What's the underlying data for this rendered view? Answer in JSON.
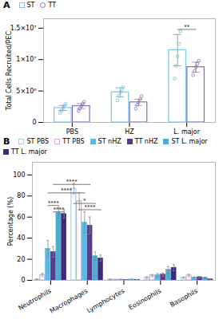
{
  "chart_data": [
    {
      "type": "bar",
      "title": "A",
      "categories": [
        "PBS",
        "HZ",
        "L. major"
      ],
      "series": [
        {
          "name": "ST",
          "color": "#7EC8E3",
          "marker": "square",
          "values": [
            2300000,
            4800000,
            11500000
          ],
          "errors": [
            400000,
            700000,
            2500000
          ],
          "points": [
            [
              1500000,
              1900000,
              2300000,
              2700000,
              3000000
            ],
            [
              3500000,
              4200000,
              4800000,
              5300000,
              5600000
            ],
            [
              7000000,
              9000000,
              10500000,
              12500000,
              14500000
            ]
          ]
        },
        {
          "name": "TT",
          "color": "#8B6BB1",
          "marker": "circle",
          "values": [
            2600000,
            3200000,
            8800000
          ],
          "errors": [
            400000,
            500000,
            800000
          ],
          "points": [
            [
              1800000,
              2200000,
              2600000,
              3000000,
              3300000
            ],
            [
              2200000,
              2800000,
              3200000,
              3700000,
              4200000
            ],
            [
              7500000,
              8200000,
              8800000,
              9300000,
              9800000
            ]
          ]
        }
      ],
      "ylabel": "Total Cells Recruited/PEC",
      "ylim": [
        0,
        16500000
      ],
      "yticks": [
        0,
        {
          "value": 5000000,
          "label": "5×10⁶"
        },
        {
          "value": 10000000,
          "label": "1×10⁷"
        },
        {
          "value": 15000000,
          "label": "1.5×10⁷"
        }
      ],
      "annotations": [
        {
          "text": "**",
          "y": 14800000,
          "from": [
            "L. major",
            "ST"
          ],
          "to": [
            "L. major",
            "TT"
          ]
        }
      ],
      "legend": "top"
    },
    {
      "type": "bar",
      "title": "B",
      "categories": [
        "Neutrophils",
        "Macrophages",
        "Lymphocytes",
        "Eosinophils",
        "Basophils"
      ],
      "series": [
        {
          "name": "ST PBS",
          "color": "#A8D0E8",
          "marker": "hollow",
          "values": [
            0.8,
            87.0,
            0.8,
            2.5,
            2.5
          ],
          "errors": [
            0.3,
            5.0,
            0.2,
            0.8,
            0.5
          ]
        },
        {
          "name": "TT PBS",
          "color": "#D4A8D8",
          "marker": "hollow",
          "values": [
            5.0,
            75.0,
            0.5,
            4.5,
            4.5
          ],
          "errors": [
            1.5,
            8.0,
            0.2,
            1.0,
            1.2
          ]
        },
        {
          "name": "ST nHZ",
          "color": "#5BB8E8",
          "values": [
            30.0,
            55.0,
            0.8,
            5.0,
            2.5
          ],
          "errors": [
            8.0,
            10.0,
            0.2,
            1.5,
            0.8
          ]
        },
        {
          "name": "TT nHZ",
          "color": "#5B3A8C",
          "values": [
            27.0,
            52.0,
            0.5,
            5.5,
            3.0
          ],
          "errors": [
            5.0,
            8.0,
            0.2,
            1.5,
            0.8
          ]
        },
        {
          "name": "ST L. major",
          "color": "#4AAED4",
          "values": [
            64.0,
            23.0,
            0.8,
            10.0,
            2.5
          ],
          "errors": [
            5.0,
            4.0,
            0.2,
            3.0,
            0.5
          ]
        },
        {
          "name": "TT L. major",
          "color": "#3D2B7A",
          "values": [
            63.0,
            21.0,
            0.5,
            12.0,
            1.0
          ],
          "errors": [
            4.0,
            3.0,
            0.2,
            3.0,
            0.3
          ]
        }
      ],
      "ylabel": "Percentage (%)",
      "ylim": [
        0,
        112
      ],
      "yticks": [
        0,
        20,
        40,
        60,
        80,
        100
      ],
      "annotations": [
        {
          "text": "****",
          "y": 71,
          "from": [
            "Neutrophils",
            "ST nHZ"
          ],
          "to": [
            "Neutrophils",
            "ST L. major"
          ]
        },
        {
          "text": "****",
          "y": 65,
          "from": [
            "Neutrophils",
            "TT nHZ"
          ],
          "to": [
            "Neutrophils",
            "TT L. major"
          ]
        },
        {
          "text": "****",
          "y": 83,
          "from": [
            "Neutrophils",
            "ST nHZ"
          ],
          "to": [
            "Macrophages",
            "ST nHZ"
          ]
        },
        {
          "text": "****",
          "y": 91,
          "from": [
            "Neutrophils",
            "TT nHZ"
          ],
          "to": [
            "Macrophages",
            "TT nHZ"
          ]
        },
        {
          "text": "*",
          "y": 73,
          "from": [
            "Macrophages",
            "ST PBS"
          ],
          "to": [
            "Macrophages",
            "ST L. major"
          ]
        },
        {
          "text": "****",
          "y": 67,
          "from": [
            "Macrophages",
            "TT PBS"
          ],
          "to": [
            "Macrophages",
            "TT L. major"
          ]
        }
      ],
      "legend": "top"
    }
  ]
}
